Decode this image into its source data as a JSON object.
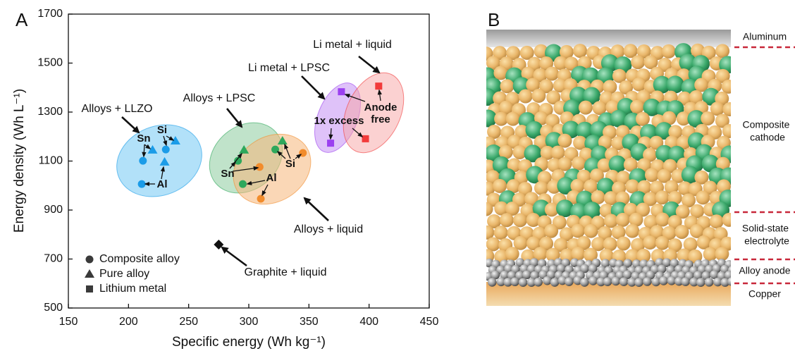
{
  "chart_data": {
    "type": "scatter",
    "panel_label": "A",
    "x_label": "Specific energy (Wh kg⁻¹)",
    "y_label": "Energy density (Wh L⁻¹)",
    "xlim": [
      150,
      450
    ],
    "ylim": [
      500,
      1700
    ],
    "xticks": [
      150,
      200,
      250,
      300,
      350,
      400,
      450
    ],
    "yticks": [
      500,
      700,
      900,
      1100,
      1300,
      1500,
      1700
    ],
    "grid": false,
    "series": [
      {
        "color": "#1b9ce8",
        "marker": "circle",
        "x": [
          212,
          231,
          211
        ],
        "values": [
          1101,
          1147,
          1006
        ]
      },
      {
        "color": "#1b9ce8",
        "marker": "triangle",
        "x": [
          220,
          239,
          230
        ],
        "values": [
          1145,
          1182,
          1096
        ]
      },
      {
        "color": "#2ea85c",
        "marker": "circle",
        "x": [
          291,
          295,
          322
        ],
        "values": [
          1101,
          1006,
          1147
        ]
      },
      {
        "color": "#2ea85c",
        "marker": "triangle",
        "x": [
          296,
          328
        ],
        "values": [
          1145,
          1182
        ]
      },
      {
        "color": "#f28c2c",
        "marker": "circle",
        "x": [
          309,
          345,
          310
        ],
        "values": [
          1076,
          1133,
          946
        ]
      },
      {
        "color": "#9b3ff0",
        "marker": "square",
        "x": [
          377,
          368
        ],
        "values": [
          1383,
          1173
        ]
      },
      {
        "color": "#f23b3b",
        "marker": "square",
        "x": [
          408,
          397
        ],
        "values": [
          1406,
          1191
        ]
      },
      {
        "color": "#111111",
        "marker": "diamond",
        "x": [
          275
        ],
        "values": [
          759
        ]
      }
    ],
    "legend": [
      {
        "label": "Composite alloy",
        "marker": "circle"
      },
      {
        "label": "Pure alloy",
        "marker": "triangle"
      },
      {
        "label": "Lithium metal",
        "marker": "square"
      }
    ],
    "annotations": [
      "Alloys + LLZO",
      "Alloys + LPSC",
      "Li metal + LPSC",
      "Li metal + liquid",
      "Alloys + liquid",
      "Graphite + liquid",
      "Sn",
      "Si",
      "Al",
      "Sn",
      "Si",
      "Al",
      "1x excess",
      "Anode",
      "free"
    ]
  },
  "diagram": {
    "panel_label": "B",
    "layers": [
      [
        "Aluminum"
      ],
      [
        "Composite",
        "cathode"
      ],
      [
        "Solid-state",
        "electrolyte"
      ],
      [
        "Alloy anode"
      ],
      [
        "Copper"
      ]
    ]
  }
}
